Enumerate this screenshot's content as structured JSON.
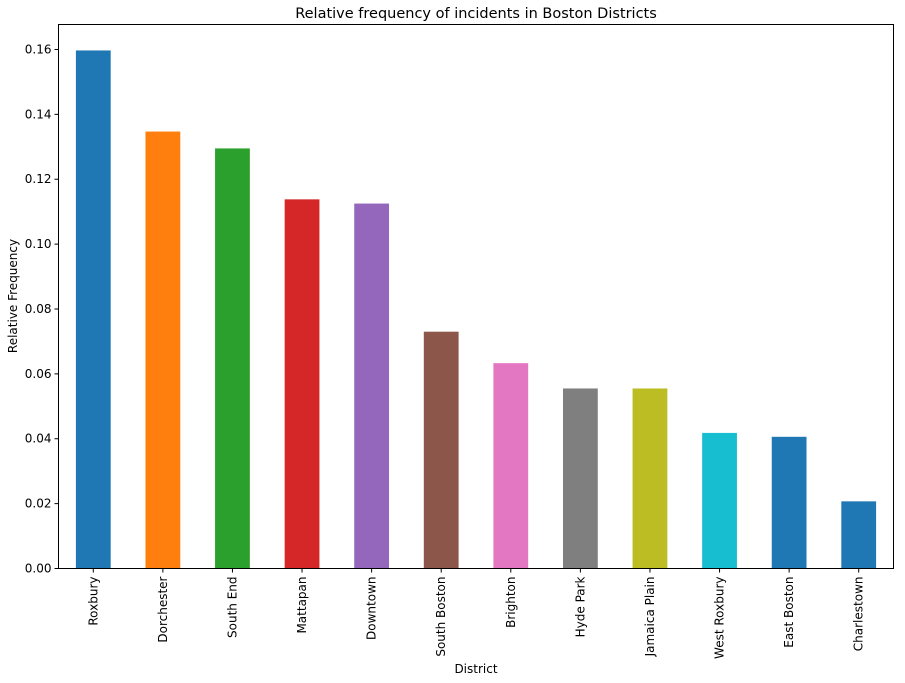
{
  "chart_data": {
    "type": "bar",
    "title": "Relative frequency of incidents in Boston Districts",
    "xlabel": "District",
    "ylabel": "Relative Frequency",
    "categories": [
      "Roxbury",
      "Dorchester",
      "South End",
      "Mattapan",
      "Downtown",
      "South Boston",
      "Brighton",
      "Hyde Park",
      "Jamaica Plain",
      "West Roxbury",
      "East Boston",
      "Charlestown"
    ],
    "values": [
      0.1597,
      0.1347,
      0.1295,
      0.1138,
      0.1125,
      0.073,
      0.0633,
      0.0555,
      0.0555,
      0.0418,
      0.0406,
      0.0207
    ],
    "colors": [
      "#1f77b4",
      "#ff7f0e",
      "#2ca02c",
      "#d62728",
      "#9467bd",
      "#8c564b",
      "#e377c2",
      "#7f7f7f",
      "#bcbd22",
      "#17becf",
      "#1f77b4",
      "#1f77b4"
    ],
    "yticks": [
      0.0,
      0.02,
      0.04,
      0.06,
      0.08,
      0.1,
      0.12,
      0.14,
      0.16
    ],
    "ytick_labels": [
      "0.00",
      "0.02",
      "0.04",
      "0.06",
      "0.08",
      "0.10",
      "0.12",
      "0.14",
      "0.16"
    ],
    "ylim": [
      0,
      0.1677
    ],
    "grid": false,
    "legend": "none"
  }
}
